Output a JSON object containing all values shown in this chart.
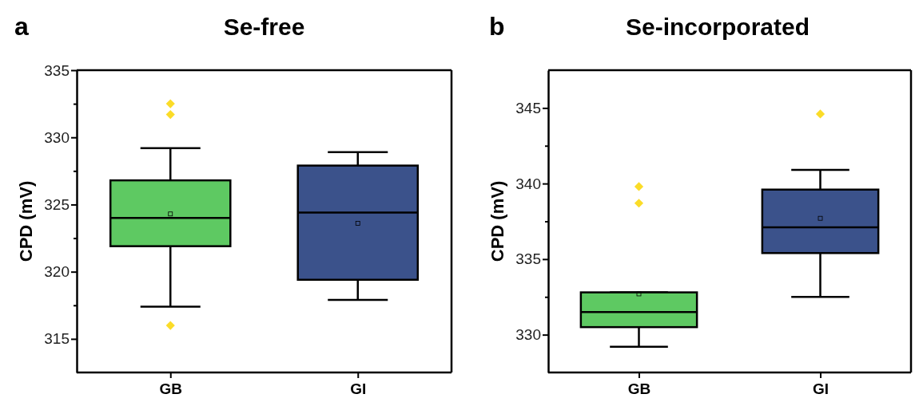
{
  "chart_data": [
    {
      "type": "box",
      "title": "Se-free",
      "ylabel": "CPD (mV)",
      "annotations": [
        "a"
      ],
      "categories": [
        "GB",
        "GI"
      ],
      "colors": [
        "#5ec962",
        "#3b528b"
      ],
      "marker": "diamond",
      "ylim": [
        312.5,
        335
      ],
      "yticks": [
        {
          "value": 315,
          "label": "315"
        },
        {
          "value": 317.5,
          "label": null
        },
        {
          "value": 320,
          "label": "320"
        },
        {
          "value": 322.5,
          "label": null
        },
        {
          "value": 325,
          "label": "325"
        },
        {
          "value": 327.5,
          "label": null
        },
        {
          "value": 330,
          "label": "330"
        },
        {
          "value": 332.5,
          "label": null
        },
        {
          "value": 335,
          "label": "335"
        }
      ],
      "grid": false,
      "boxes": [
        {
          "low": 317.4,
          "q1": 321.9,
          "median": 324.0,
          "q3": 326.8,
          "high": 329.2,
          "mean": 324.3,
          "outliers": [
            332.5,
            331.7,
            316.0
          ]
        },
        {
          "low": 317.9,
          "q1": 319.4,
          "median": 324.4,
          "q3": 327.9,
          "high": 328.9,
          "mean": 323.6
        }
      ]
    },
    {
      "type": "box",
      "title": "Se-incorporated",
      "ylabel": "CPD (mV)",
      "annotations": [
        "b"
      ],
      "categories": [
        "GB",
        "GI"
      ],
      "colors": [
        "#5ec962",
        "#3b528b"
      ],
      "marker": "diamond",
      "ylim": [
        327.5,
        347.5
      ],
      "yticks": [
        {
          "value": 330,
          "label": "330"
        },
        {
          "value": 332.5,
          "label": null
        },
        {
          "value": 335,
          "label": "335"
        },
        {
          "value": 337.5,
          "label": null
        },
        {
          "value": 340,
          "label": "340"
        },
        {
          "value": 342.5,
          "label": null
        },
        {
          "value": 345,
          "label": "345"
        }
      ],
      "grid": false,
      "boxes": [
        {
          "low": 329.2,
          "q1": 330.5,
          "median": 331.5,
          "q3": 332.8,
          "high": 332.8,
          "mean": 332.7,
          "outliers": [
            339.8,
            338.7
          ]
        },
        {
          "low": 332.5,
          "q1": 335.4,
          "median": 337.1,
          "q3": 339.6,
          "high": 340.9,
          "mean": 337.7,
          "outliers": [
            344.6
          ]
        }
      ]
    }
  ]
}
